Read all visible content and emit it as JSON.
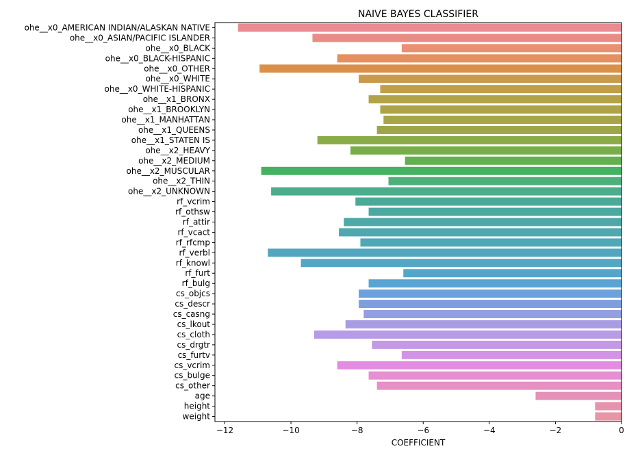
{
  "chart_data": {
    "type": "bar",
    "orientation": "horizontal",
    "title": "NAIVE BAYES CLASSIFIER",
    "xlabel": "COEFFICIENT",
    "ylabel": "",
    "xlim": [
      -12.3,
      0
    ],
    "xticks": [
      -12,
      -10,
      -8,
      -6,
      -4,
      -2,
      0
    ],
    "xtick_labels": [
      "−12",
      "−10",
      "−8",
      "−6",
      "−4",
      "−2",
      "0"
    ],
    "grid": false,
    "categories": [
      "ohe__x0_AMERICAN INDIAN/ALASKAN NATIVE",
      "ohe__x0_ASIAN/PACIFIC ISLANDER",
      "ohe__x0_BLACK",
      "ohe__x0_BLACK-HISPANIC",
      "ohe__x0_OTHER",
      "ohe__x0_WHITE",
      "ohe__x0_WHITE-HISPANIC",
      "ohe__x1_BRONX",
      "ohe__x1_BROOKLYN",
      "ohe__x1_MANHATTAN",
      "ohe__x1_QUEENS",
      "ohe__x1_STATEN IS",
      "ohe__x2_HEAVY",
      "ohe__x2_MEDIUM",
      "ohe__x2_MUSCULAR",
      "ohe__x2_THIN",
      "ohe__x2_UNKNOWN",
      "rf_vcrim",
      "rf_othsw",
      "rf_attir",
      "rf_vcact",
      "rf_rfcmp",
      "rf_verbl",
      "rf_knowl",
      "rf_furt",
      "rf_bulg",
      "cs_objcs",
      "cs_descr",
      "cs_casng",
      "cs_lkout",
      "cs_cloth",
      "cs_drgtr",
      "cs_furtv",
      "cs_vcrim",
      "cs_bulge",
      "cs_other",
      "age",
      "height",
      "weight"
    ],
    "values": [
      -11.6,
      -9.35,
      -6.65,
      -8.6,
      -10.95,
      -7.95,
      -7.3,
      -7.65,
      -7.3,
      -7.2,
      -7.4,
      -9.2,
      -8.2,
      -6.55,
      -10.9,
      -7.05,
      -10.6,
      -8.05,
      -7.65,
      -8.4,
      -8.55,
      -7.9,
      -10.7,
      -9.7,
      -6.6,
      -7.65,
      -7.95,
      -7.95,
      -7.8,
      -8.35,
      -9.3,
      -7.55,
      -6.65,
      -8.6,
      -7.65,
      -7.4,
      -2.6,
      -0.8,
      -0.8
    ],
    "colors": [
      "#eb8a91",
      "#ea8c84",
      "#e98f72",
      "#e5905e",
      "#d9914a",
      "#c99a49",
      "#bfa048",
      "#b3a348",
      "#ada448",
      "#a6a548",
      "#9ea748",
      "#8aab48",
      "#78ae4a",
      "#62b04f",
      "#46b161",
      "#4bb07a",
      "#4bad8c",
      "#4baa97",
      "#4ca9a1",
      "#4ea8a9",
      "#4fa8b0",
      "#50a8b7",
      "#51a7be",
      "#53a6c4",
      "#55a5cb",
      "#5aa3d4",
      "#6ba1dc",
      "#7e9fde",
      "#949ee0",
      "#a89de3",
      "#b79be6",
      "#c598e6",
      "#d293e4",
      "#e28ddf",
      "#e68fd2",
      "#e690c4",
      "#e591b8",
      "#e793ad",
      "#e895a6"
    ]
  }
}
